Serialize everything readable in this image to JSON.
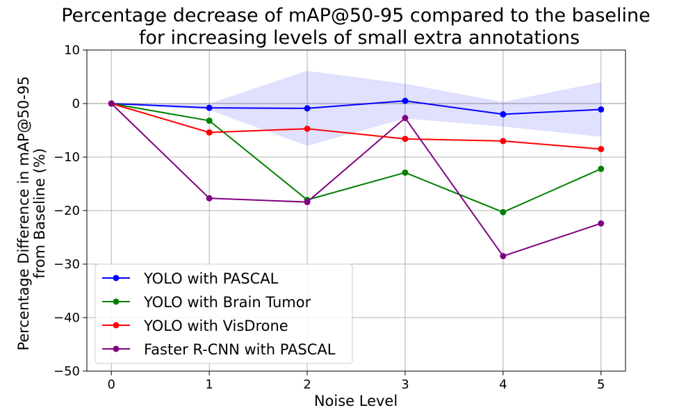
{
  "chart_data": {
    "type": "line",
    "title_lines": [
      "Percentage decrease of mAP@50-95 compared to the baseline",
      "for increasing levels of small extra annotations"
    ],
    "xlabel": "Noise Level",
    "ylabel_lines": [
      "Percentage Difference in mAP@50-95",
      "from Baseline (%)"
    ],
    "x": [
      0,
      1,
      2,
      3,
      4,
      5
    ],
    "xlim": [
      -0.25,
      5.25
    ],
    "ylim": [
      -50,
      10
    ],
    "xticks": [
      "0",
      "1",
      "2",
      "3",
      "4",
      "5"
    ],
    "yticks": [
      "10",
      "0",
      "−10",
      "−20",
      "−30",
      "−40",
      "−50"
    ],
    "ytick_values": [
      10,
      0,
      -10,
      -20,
      -30,
      -40,
      -50
    ],
    "grid": true,
    "baseline_y": 0,
    "legend_position": "lower-left",
    "series": [
      {
        "name": "YOLO with PASCAL",
        "color": "#0000ff",
        "values": [
          0,
          -0.8,
          -0.9,
          0.5,
          -2.0,
          -1.1
        ]
      },
      {
        "name": "YOLO with Brain Tumor",
        "color": "#008000",
        "values": [
          0,
          -3.2,
          -18.0,
          -12.9,
          -20.3,
          -12.2
        ]
      },
      {
        "name": "YOLO with VisDrone",
        "color": "#ff0000",
        "values": [
          0,
          -5.4,
          -4.7,
          -6.6,
          -7.0,
          -8.5
        ]
      },
      {
        "name": "Faster R-CNN with PASCAL",
        "color": "#800080",
        "values": [
          0,
          -17.7,
          -18.4,
          -2.7,
          -28.5,
          -22.4
        ]
      }
    ],
    "band": {
      "color": "#0000ff",
      "upper": [
        0,
        0.0,
        6.1,
        3.7,
        0.3,
        4.0
      ],
      "lower": [
        0,
        -1.2,
        -7.9,
        -2.8,
        -4.3,
        -6.2
      ]
    }
  }
}
